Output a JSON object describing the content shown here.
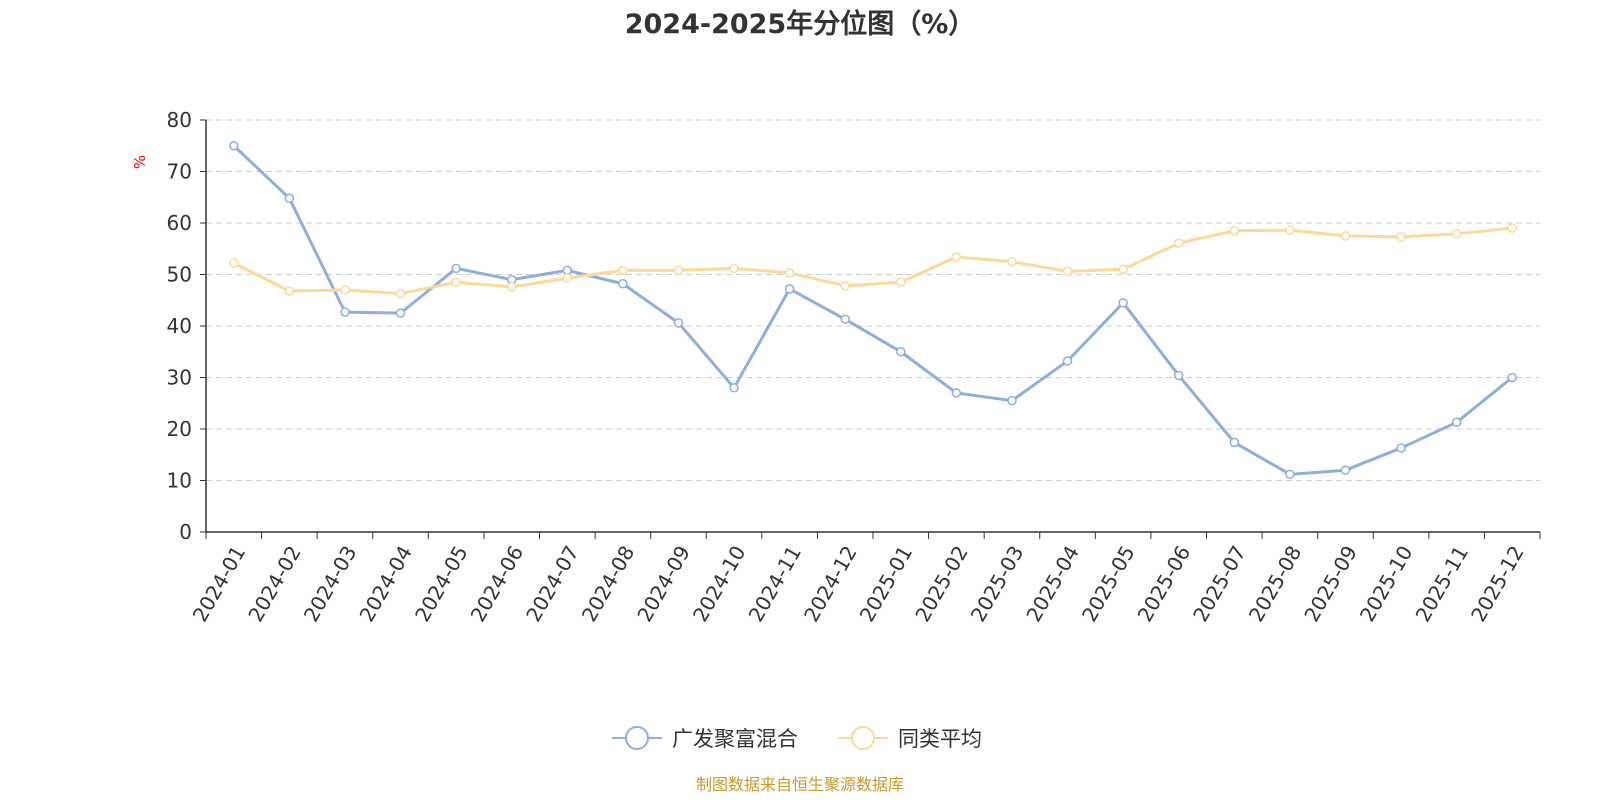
{
  "chart_data": {
    "type": "line",
    "title": "2024-2025年分位图（%）",
    "ylabel": "%",
    "xlabel": "",
    "ylim": [
      0,
      80
    ],
    "yticks": [
      0,
      10,
      20,
      30,
      40,
      50,
      60,
      70,
      80
    ],
    "grid": true,
    "legend_position": "bottom-center",
    "categories": [
      "2024-01",
      "2024-02",
      "2024-03",
      "2024-04",
      "2024-05",
      "2024-06",
      "2024-07",
      "2024-08",
      "2024-09",
      "2024-10",
      "2024-11",
      "2024-12",
      "2025-01",
      "2025-02",
      "2025-03",
      "2025-04",
      "2025-05",
      "2025-06",
      "2025-07",
      "2025-08",
      "2025-09",
      "2025-10",
      "2025-11",
      "2025-12"
    ],
    "series": [
      {
        "name": "广发聚富混合",
        "color": "#8eaedb",
        "values": [
          75.0,
          64.8,
          42.7,
          42.5,
          51.2,
          49.0,
          50.8,
          48.2,
          40.6,
          28.0,
          47.2,
          41.3,
          35.0,
          27.0,
          25.5,
          33.2,
          44.5,
          30.4,
          17.4,
          11.2,
          12.0,
          16.3,
          21.3,
          30.0
        ]
      },
      {
        "name": "同类平均",
        "color": "#fcd998",
        "values": [
          52.2,
          46.8,
          47.0,
          46.3,
          48.5,
          47.6,
          49.3,
          50.8,
          50.8,
          51.2,
          50.3,
          47.8,
          48.5,
          53.4,
          52.5,
          50.6,
          51.0,
          56.1,
          58.5,
          58.6,
          57.5,
          57.3,
          57.9,
          59.0
        ]
      }
    ],
    "source_note": "制图数据来自恒生聚源数据库"
  }
}
